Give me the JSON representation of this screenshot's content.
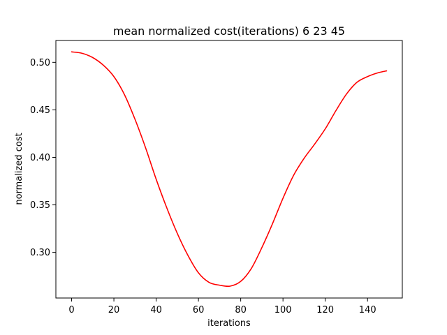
{
  "chart_data": {
    "type": "line",
    "title": "mean normalized cost(iterations) 6  23 45",
    "xlabel": "iterations",
    "ylabel": "normalized cost",
    "xlim": [
      -7.45,
      156.45
    ],
    "ylim": [
      0.252,
      0.523
    ],
    "x_ticks": [
      0,
      20,
      40,
      60,
      80,
      100,
      120,
      140
    ],
    "y_ticks": [
      0.3,
      0.35,
      0.4,
      0.45,
      0.5
    ],
    "x_tick_labels": [
      "0",
      "20",
      "40",
      "60",
      "80",
      "100",
      "120",
      "140"
    ],
    "y_tick_labels": [
      "0.30",
      "0.35",
      "0.40",
      "0.45",
      "0.50"
    ],
    "grid": false,
    "series": [
      {
        "color": "#ff0000",
        "x": [
          0,
          5,
          10,
          15,
          20,
          25,
          30,
          35,
          40,
          45,
          50,
          55,
          60,
          65,
          70,
          75,
          80,
          85,
          90,
          95,
          100,
          105,
          110,
          115,
          120,
          125,
          130,
          135,
          140,
          145,
          149
        ],
        "y": [
          0.511,
          0.5095,
          0.505,
          0.497,
          0.485,
          0.466,
          0.44,
          0.41,
          0.377,
          0.347,
          0.32,
          0.297,
          0.2785,
          0.2685,
          0.2655,
          0.2645,
          0.2695,
          0.283,
          0.305,
          0.33,
          0.357,
          0.381,
          0.399,
          0.414,
          0.43,
          0.449,
          0.4665,
          0.479,
          0.485,
          0.489,
          0.491
        ]
      }
    ]
  }
}
